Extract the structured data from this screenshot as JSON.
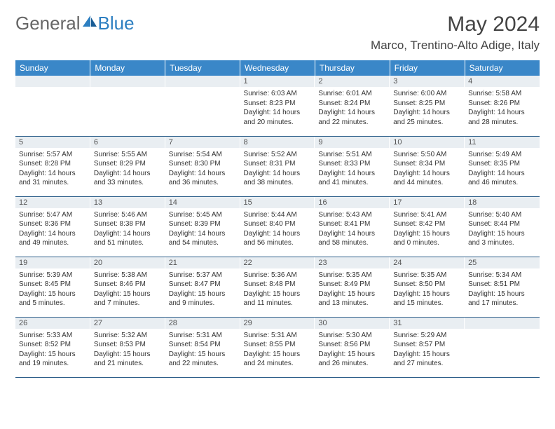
{
  "brand": {
    "part1": "General",
    "part2": "Blue"
  },
  "title": "May 2024",
  "location": "Marco, Trentino-Alto Adige, Italy",
  "colors": {
    "header_bg": "#3a87c8",
    "header_text": "#ffffff",
    "daynum_bg": "#e9eef2",
    "cell_border": "#2d5f8a",
    "brand_blue": "#2d7fc1",
    "text": "#333333"
  },
  "dayHeaders": [
    "Sunday",
    "Monday",
    "Tuesday",
    "Wednesday",
    "Thursday",
    "Friday",
    "Saturday"
  ],
  "weeks": [
    [
      {
        "day": "",
        "lines": []
      },
      {
        "day": "",
        "lines": []
      },
      {
        "day": "",
        "lines": []
      },
      {
        "day": "1",
        "lines": [
          "Sunrise: 6:03 AM",
          "Sunset: 8:23 PM",
          "Daylight: 14 hours",
          "and 20 minutes."
        ]
      },
      {
        "day": "2",
        "lines": [
          "Sunrise: 6:01 AM",
          "Sunset: 8:24 PM",
          "Daylight: 14 hours",
          "and 22 minutes."
        ]
      },
      {
        "day": "3",
        "lines": [
          "Sunrise: 6:00 AM",
          "Sunset: 8:25 PM",
          "Daylight: 14 hours",
          "and 25 minutes."
        ]
      },
      {
        "day": "4",
        "lines": [
          "Sunrise: 5:58 AM",
          "Sunset: 8:26 PM",
          "Daylight: 14 hours",
          "and 28 minutes."
        ]
      }
    ],
    [
      {
        "day": "5",
        "lines": [
          "Sunrise: 5:57 AM",
          "Sunset: 8:28 PM",
          "Daylight: 14 hours",
          "and 31 minutes."
        ]
      },
      {
        "day": "6",
        "lines": [
          "Sunrise: 5:55 AM",
          "Sunset: 8:29 PM",
          "Daylight: 14 hours",
          "and 33 minutes."
        ]
      },
      {
        "day": "7",
        "lines": [
          "Sunrise: 5:54 AM",
          "Sunset: 8:30 PM",
          "Daylight: 14 hours",
          "and 36 minutes."
        ]
      },
      {
        "day": "8",
        "lines": [
          "Sunrise: 5:52 AM",
          "Sunset: 8:31 PM",
          "Daylight: 14 hours",
          "and 38 minutes."
        ]
      },
      {
        "day": "9",
        "lines": [
          "Sunrise: 5:51 AM",
          "Sunset: 8:33 PM",
          "Daylight: 14 hours",
          "and 41 minutes."
        ]
      },
      {
        "day": "10",
        "lines": [
          "Sunrise: 5:50 AM",
          "Sunset: 8:34 PM",
          "Daylight: 14 hours",
          "and 44 minutes."
        ]
      },
      {
        "day": "11",
        "lines": [
          "Sunrise: 5:49 AM",
          "Sunset: 8:35 PM",
          "Daylight: 14 hours",
          "and 46 minutes."
        ]
      }
    ],
    [
      {
        "day": "12",
        "lines": [
          "Sunrise: 5:47 AM",
          "Sunset: 8:36 PM",
          "Daylight: 14 hours",
          "and 49 minutes."
        ]
      },
      {
        "day": "13",
        "lines": [
          "Sunrise: 5:46 AM",
          "Sunset: 8:38 PM",
          "Daylight: 14 hours",
          "and 51 minutes."
        ]
      },
      {
        "day": "14",
        "lines": [
          "Sunrise: 5:45 AM",
          "Sunset: 8:39 PM",
          "Daylight: 14 hours",
          "and 54 minutes."
        ]
      },
      {
        "day": "15",
        "lines": [
          "Sunrise: 5:44 AM",
          "Sunset: 8:40 PM",
          "Daylight: 14 hours",
          "and 56 minutes."
        ]
      },
      {
        "day": "16",
        "lines": [
          "Sunrise: 5:43 AM",
          "Sunset: 8:41 PM",
          "Daylight: 14 hours",
          "and 58 minutes."
        ]
      },
      {
        "day": "17",
        "lines": [
          "Sunrise: 5:41 AM",
          "Sunset: 8:42 PM",
          "Daylight: 15 hours",
          "and 0 minutes."
        ]
      },
      {
        "day": "18",
        "lines": [
          "Sunrise: 5:40 AM",
          "Sunset: 8:44 PM",
          "Daylight: 15 hours",
          "and 3 minutes."
        ]
      }
    ],
    [
      {
        "day": "19",
        "lines": [
          "Sunrise: 5:39 AM",
          "Sunset: 8:45 PM",
          "Daylight: 15 hours",
          "and 5 minutes."
        ]
      },
      {
        "day": "20",
        "lines": [
          "Sunrise: 5:38 AM",
          "Sunset: 8:46 PM",
          "Daylight: 15 hours",
          "and 7 minutes."
        ]
      },
      {
        "day": "21",
        "lines": [
          "Sunrise: 5:37 AM",
          "Sunset: 8:47 PM",
          "Daylight: 15 hours",
          "and 9 minutes."
        ]
      },
      {
        "day": "22",
        "lines": [
          "Sunrise: 5:36 AM",
          "Sunset: 8:48 PM",
          "Daylight: 15 hours",
          "and 11 minutes."
        ]
      },
      {
        "day": "23",
        "lines": [
          "Sunrise: 5:35 AM",
          "Sunset: 8:49 PM",
          "Daylight: 15 hours",
          "and 13 minutes."
        ]
      },
      {
        "day": "24",
        "lines": [
          "Sunrise: 5:35 AM",
          "Sunset: 8:50 PM",
          "Daylight: 15 hours",
          "and 15 minutes."
        ]
      },
      {
        "day": "25",
        "lines": [
          "Sunrise: 5:34 AM",
          "Sunset: 8:51 PM",
          "Daylight: 15 hours",
          "and 17 minutes."
        ]
      }
    ],
    [
      {
        "day": "26",
        "lines": [
          "Sunrise: 5:33 AM",
          "Sunset: 8:52 PM",
          "Daylight: 15 hours",
          "and 19 minutes."
        ]
      },
      {
        "day": "27",
        "lines": [
          "Sunrise: 5:32 AM",
          "Sunset: 8:53 PM",
          "Daylight: 15 hours",
          "and 21 minutes."
        ]
      },
      {
        "day": "28",
        "lines": [
          "Sunrise: 5:31 AM",
          "Sunset: 8:54 PM",
          "Daylight: 15 hours",
          "and 22 minutes."
        ]
      },
      {
        "day": "29",
        "lines": [
          "Sunrise: 5:31 AM",
          "Sunset: 8:55 PM",
          "Daylight: 15 hours",
          "and 24 minutes."
        ]
      },
      {
        "day": "30",
        "lines": [
          "Sunrise: 5:30 AM",
          "Sunset: 8:56 PM",
          "Daylight: 15 hours",
          "and 26 minutes."
        ]
      },
      {
        "day": "31",
        "lines": [
          "Sunrise: 5:29 AM",
          "Sunset: 8:57 PM",
          "Daylight: 15 hours",
          "and 27 minutes."
        ]
      },
      {
        "day": "",
        "lines": []
      }
    ]
  ]
}
